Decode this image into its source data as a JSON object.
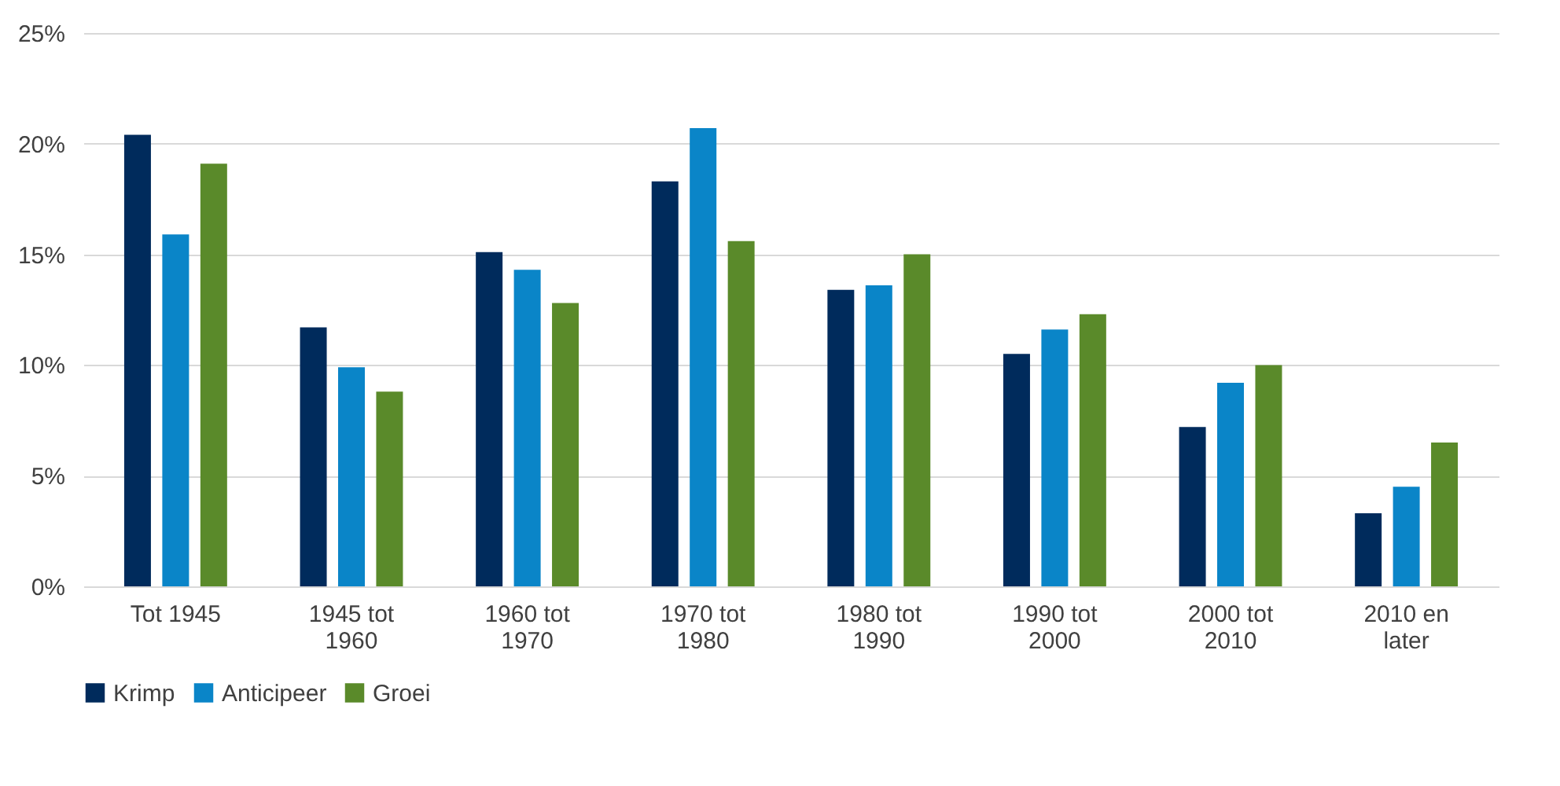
{
  "chart_data": {
    "type": "bar",
    "categories": [
      "Tot 1945",
      "1945 tot 1960",
      "1960 tot 1970",
      "1970 tot 1980",
      "1980 tot 1990",
      "1990 tot 2000",
      "2000 tot 2010",
      "2010 en later"
    ],
    "series": [
      {
        "name": "Krimp",
        "color": "#002b5c",
        "values": [
          20.4,
          11.7,
          15.1,
          18.3,
          13.4,
          10.5,
          7.2,
          3.3
        ]
      },
      {
        "name": "Anticipeer",
        "color": "#0a85c8",
        "values": [
          15.9,
          9.9,
          14.3,
          20.7,
          13.6,
          11.6,
          9.2,
          4.5
        ]
      },
      {
        "name": "Groei",
        "color": "#5a8a2a",
        "values": [
          19.1,
          8.8,
          12.8,
          15.6,
          15.0,
          12.3,
          10.0,
          6.5
        ]
      }
    ],
    "ylim": [
      0,
      25
    ],
    "yticks": [
      {
        "value": 0,
        "label": "0%"
      },
      {
        "value": 5,
        "label": "5%"
      },
      {
        "value": 10,
        "label": "10%"
      },
      {
        "value": 15,
        "label": "15%"
      },
      {
        "value": 20,
        "label": "20%"
      },
      {
        "value": 25,
        "label": "25%"
      }
    ],
    "grid": "y",
    "legend": "bottom"
  }
}
